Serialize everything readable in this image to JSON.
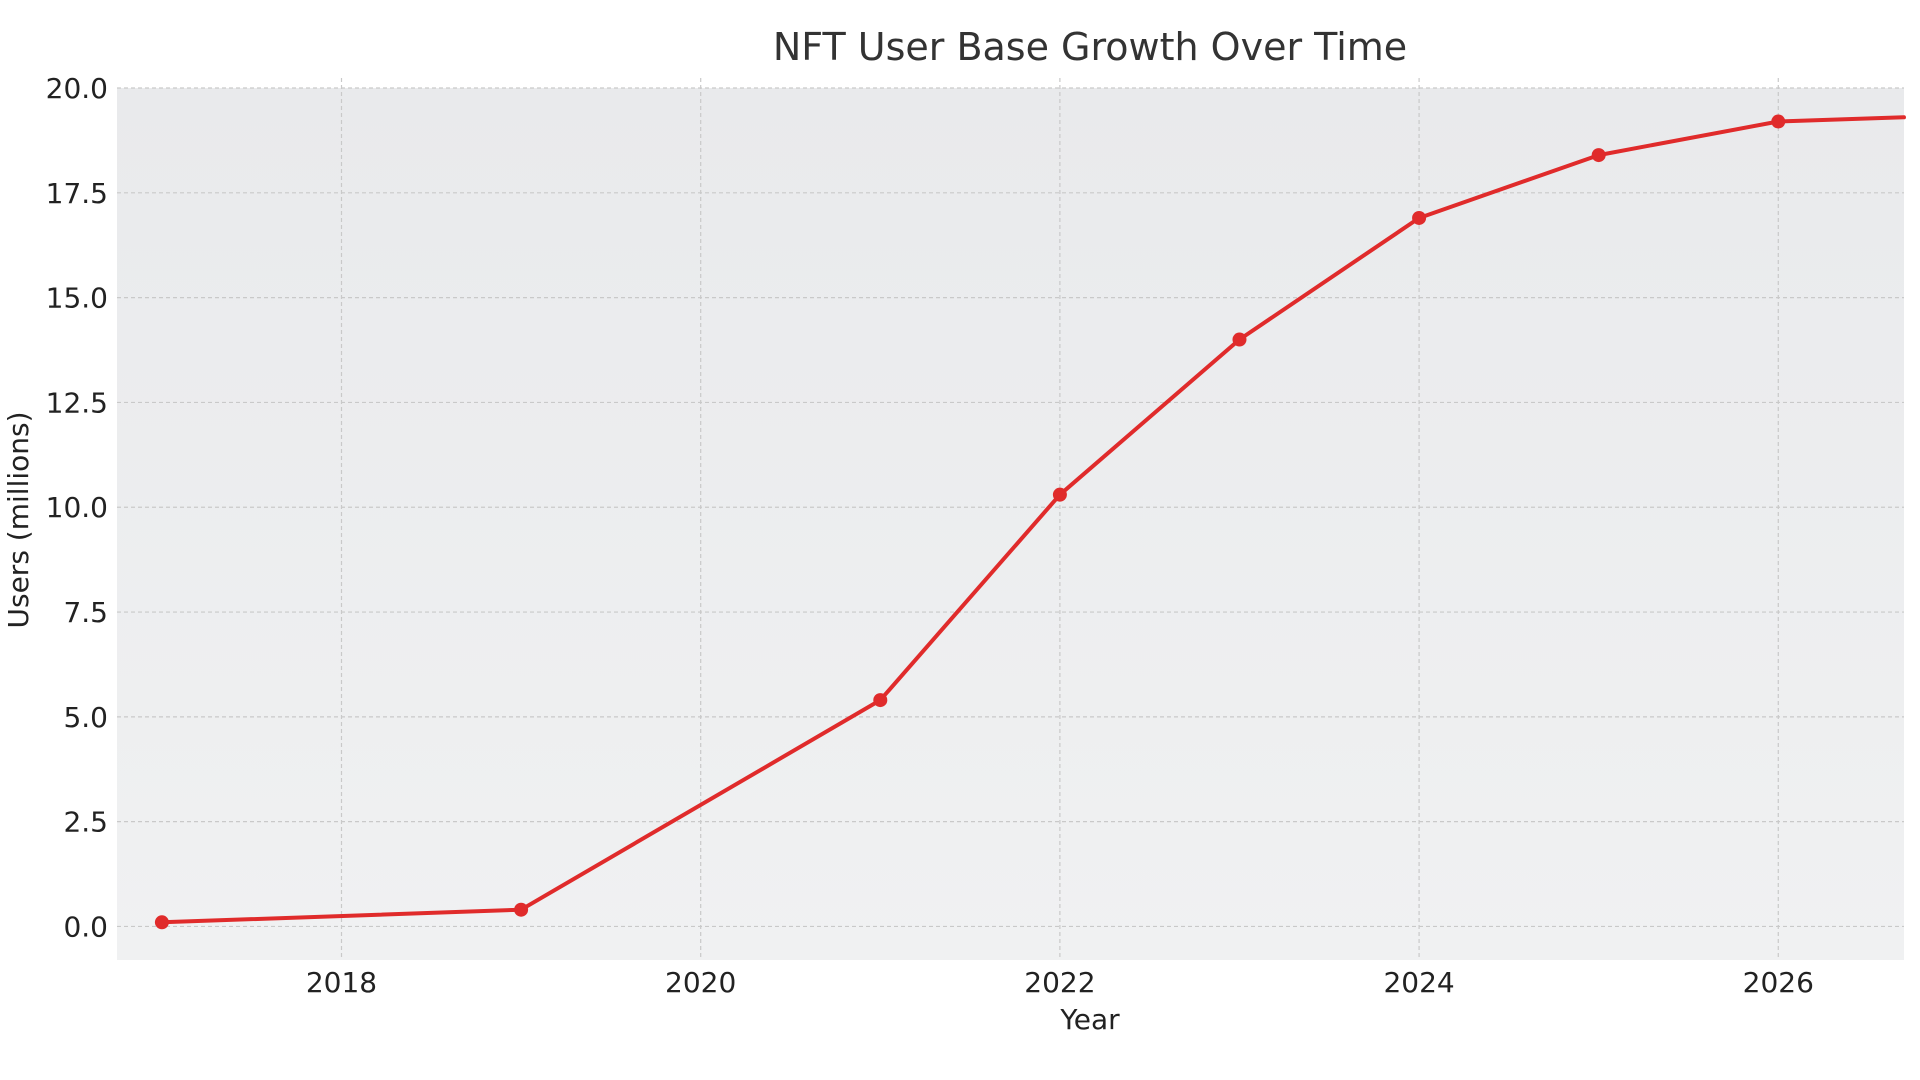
{
  "chart_data": {
    "type": "line",
    "title": "NFT User Base Growth Over Time",
    "xlabel": "Year",
    "ylabel": "Users (millions)",
    "xlim": [
      2016.75,
      2026.7
    ],
    "ylim": [
      -0.8,
      20.0
    ],
    "xticks": [
      2018,
      2020,
      2022,
      2024,
      2026
    ],
    "yticks": [
      0.0,
      2.5,
      5.0,
      7.5,
      10.0,
      12.5,
      15.0,
      17.5,
      20.0
    ],
    "grid": true,
    "series": [
      {
        "color": "#e02b2b",
        "line_x": [
          2017,
          2019,
          2021,
          2022,
          2023,
          2024,
          2025,
          2026,
          2026.7
        ],
        "line_y": [
          0.1,
          0.4,
          5.4,
          10.3,
          14.0,
          16.9,
          18.4,
          19.2,
          19.3
        ],
        "marker_x": [
          2017,
          2019,
          2021,
          2022,
          2023,
          2024,
          2025,
          2026
        ],
        "marker_y": [
          0.1,
          0.4,
          5.4,
          10.3,
          14.0,
          16.9,
          18.4,
          19.2
        ]
      }
    ]
  }
}
